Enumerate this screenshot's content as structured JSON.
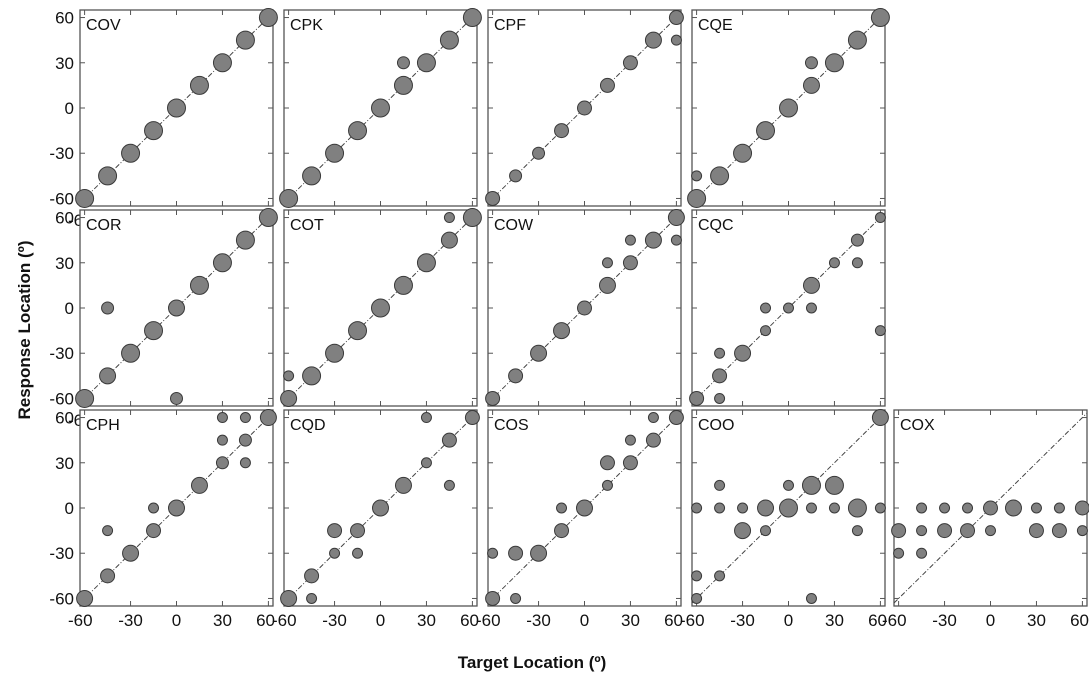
{
  "figure": {
    "xlabel": "Target Location (º)",
    "ylabel": "Response Location (º)"
  },
  "chart_data": [
    {
      "type": "scatter",
      "panel": "COV",
      "xlim": [
        -63,
        63
      ],
      "ylim": [
        -65,
        65
      ],
      "xticks": [
        "-60",
        "-30",
        "0",
        "30",
        "60"
      ],
      "yticks": [
        "60",
        "30",
        "0",
        "-30",
        "-60"
      ],
      "points": [
        [
          -60,
          -60,
          9
        ],
        [
          -45,
          -45,
          9
        ],
        [
          -30,
          -30,
          9
        ],
        [
          -15,
          -15,
          9
        ],
        [
          0,
          0,
          9
        ],
        [
          15,
          15,
          9
        ],
        [
          30,
          30,
          9
        ],
        [
          45,
          45,
          9
        ],
        [
          60,
          60,
          9
        ]
      ]
    },
    {
      "type": "scatter",
      "panel": "CPK",
      "xlim": [
        -63,
        63
      ],
      "ylim": [
        -65,
        65
      ],
      "points": [
        [
          -60,
          -60,
          9
        ],
        [
          -45,
          -45,
          9
        ],
        [
          -30,
          -30,
          9
        ],
        [
          -15,
          -15,
          9
        ],
        [
          0,
          0,
          9
        ],
        [
          15,
          15,
          9
        ],
        [
          15,
          30,
          6
        ],
        [
          30,
          30,
          9
        ],
        [
          45,
          45,
          9
        ],
        [
          60,
          60,
          9
        ]
      ]
    },
    {
      "type": "scatter",
      "panel": "CPF",
      "xlim": [
        -63,
        63
      ],
      "ylim": [
        -65,
        65
      ],
      "points": [
        [
          -60,
          -60,
          7
        ],
        [
          -45,
          -45,
          6
        ],
        [
          -30,
          -30,
          6
        ],
        [
          -15,
          -15,
          7
        ],
        [
          0,
          0,
          7
        ],
        [
          15,
          15,
          7
        ],
        [
          30,
          30,
          7
        ],
        [
          45,
          45,
          8
        ],
        [
          60,
          60,
          7
        ],
        [
          60,
          45,
          5
        ]
      ]
    },
    {
      "type": "scatter",
      "panel": "CQE",
      "xlim": [
        -63,
        63
      ],
      "ylim": [
        -65,
        65
      ],
      "points": [
        [
          -60,
          -60,
          9
        ],
        [
          -60,
          -45,
          5
        ],
        [
          -45,
          -45,
          9
        ],
        [
          -30,
          -30,
          9
        ],
        [
          -15,
          -15,
          9
        ],
        [
          0,
          0,
          9
        ],
        [
          15,
          15,
          8
        ],
        [
          15,
          30,
          6
        ],
        [
          30,
          30,
          9
        ],
        [
          45,
          45,
          9
        ],
        [
          60,
          60,
          9
        ]
      ]
    },
    {
      "type": "scatter",
      "panel": "COR",
      "xlim": [
        -63,
        63
      ],
      "ylim": [
        -65,
        65
      ],
      "xticks": [
        "-60",
        "-30",
        "0",
        "30",
        "60"
      ],
      "yticks": [
        "60",
        "30",
        "0",
        "-30",
        "-60"
      ],
      "points": [
        [
          -60,
          -60,
          9
        ],
        [
          -45,
          -45,
          8
        ],
        [
          -45,
          0,
          6
        ],
        [
          -30,
          -30,
          9
        ],
        [
          -15,
          -15,
          9
        ],
        [
          0,
          0,
          8
        ],
        [
          0,
          -60,
          6
        ],
        [
          15,
          15,
          9
        ],
        [
          30,
          30,
          9
        ],
        [
          45,
          45,
          9
        ],
        [
          60,
          60,
          9
        ]
      ]
    },
    {
      "type": "scatter",
      "panel": "COT",
      "xlim": [
        -63,
        63
      ],
      "ylim": [
        -65,
        65
      ],
      "points": [
        [
          -60,
          -60,
          8
        ],
        [
          -60,
          -45,
          5
        ],
        [
          -45,
          -45,
          9
        ],
        [
          -30,
          -30,
          9
        ],
        [
          -15,
          -15,
          9
        ],
        [
          0,
          0,
          9
        ],
        [
          15,
          15,
          9
        ],
        [
          30,
          30,
          9
        ],
        [
          45,
          45,
          8
        ],
        [
          45,
          60,
          5
        ],
        [
          60,
          60,
          9
        ]
      ]
    },
    {
      "type": "scatter",
      "panel": "COW",
      "xlim": [
        -63,
        63
      ],
      "ylim": [
        -65,
        65
      ],
      "points": [
        [
          -60,
          -60,
          7
        ],
        [
          -45,
          -45,
          7
        ],
        [
          -30,
          -30,
          8
        ],
        [
          -15,
          -15,
          8
        ],
        [
          0,
          0,
          7
        ],
        [
          15,
          15,
          8
        ],
        [
          15,
          30,
          5
        ],
        [
          30,
          30,
          7
        ],
        [
          30,
          45,
          5
        ],
        [
          45,
          45,
          8
        ],
        [
          60,
          60,
          8
        ],
        [
          60,
          45,
          5
        ]
      ]
    },
    {
      "type": "scatter",
      "panel": "CQC",
      "xlim": [
        -63,
        63
      ],
      "ylim": [
        -65,
        65
      ],
      "points": [
        [
          -60,
          -60,
          7
        ],
        [
          -45,
          -45,
          7
        ],
        [
          -45,
          -30,
          5
        ],
        [
          -45,
          -60,
          5
        ],
        [
          -30,
          -30,
          8
        ],
        [
          -15,
          -15,
          5
        ],
        [
          -15,
          0,
          5
        ],
        [
          0,
          0,
          5
        ],
        [
          15,
          15,
          8
        ],
        [
          15,
          0,
          5
        ],
        [
          30,
          30,
          5
        ],
        [
          45,
          45,
          6
        ],
        [
          45,
          30,
          5
        ],
        [
          60,
          60,
          5
        ],
        [
          60,
          -15,
          5
        ]
      ]
    },
    {
      "type": "scatter",
      "panel": "CPH",
      "xlim": [
        -63,
        63
      ],
      "ylim": [
        -65,
        65
      ],
      "xticks": [
        "-60",
        "-30",
        "0",
        "30",
        "60"
      ],
      "yticks": [
        "60",
        "30",
        "0",
        "-30",
        "-60"
      ],
      "points": [
        [
          -60,
          -60,
          8
        ],
        [
          -45,
          -45,
          7
        ],
        [
          -45,
          -15,
          5
        ],
        [
          -30,
          -30,
          8
        ],
        [
          -15,
          -15,
          7
        ],
        [
          -15,
          0,
          5
        ],
        [
          0,
          0,
          8
        ],
        [
          15,
          15,
          8
        ],
        [
          30,
          30,
          6
        ],
        [
          30,
          45,
          5
        ],
        [
          30,
          60,
          5
        ],
        [
          45,
          45,
          6
        ],
        [
          45,
          60,
          5
        ],
        [
          45,
          30,
          5
        ],
        [
          60,
          60,
          8
        ]
      ]
    },
    {
      "type": "scatter",
      "panel": "CQD",
      "xlim": [
        -63,
        63
      ],
      "ylim": [
        -65,
        65
      ],
      "xticks": [
        "-60",
        "-30",
        "0",
        "30",
        "60"
      ],
      "points": [
        [
          -60,
          -60,
          8
        ],
        [
          -45,
          -45,
          7
        ],
        [
          -45,
          -60,
          5
        ],
        [
          -30,
          -30,
          5
        ],
        [
          -30,
          -15,
          7
        ],
        [
          -15,
          -15,
          7
        ],
        [
          -15,
          -30,
          5
        ],
        [
          0,
          0,
          8
        ],
        [
          15,
          15,
          8
        ],
        [
          30,
          30,
          5
        ],
        [
          30,
          60,
          5
        ],
        [
          45,
          45,
          7
        ],
        [
          45,
          15,
          5
        ],
        [
          60,
          60,
          7
        ]
      ]
    },
    {
      "type": "scatter",
      "panel": "COS",
      "xlim": [
        -63,
        63
      ],
      "ylim": [
        -65,
        65
      ],
      "xticks": [
        "-60",
        "-30",
        "0",
        "30",
        "60"
      ],
      "points": [
        [
          -60,
          -60,
          7
        ],
        [
          -60,
          -30,
          5
        ],
        [
          -45,
          -30,
          7
        ],
        [
          -45,
          -60,
          5
        ],
        [
          -30,
          -30,
          8
        ],
        [
          -15,
          -15,
          7
        ],
        [
          -15,
          0,
          5
        ],
        [
          0,
          0,
          8
        ],
        [
          15,
          15,
          5
        ],
        [
          15,
          30,
          7
        ],
        [
          30,
          30,
          7
        ],
        [
          30,
          45,
          5
        ],
        [
          45,
          45,
          7
        ],
        [
          45,
          60,
          5
        ],
        [
          60,
          60,
          7
        ]
      ]
    },
    {
      "type": "scatter",
      "panel": "COO",
      "xlim": [
        -63,
        63
      ],
      "ylim": [
        -65,
        65
      ],
      "xticks": [
        "-60",
        "-30",
        "0",
        "30",
        "60"
      ],
      "points": [
        [
          -60,
          -60,
          5
        ],
        [
          -60,
          -45,
          5
        ],
        [
          -60,
          0,
          5
        ],
        [
          -45,
          -45,
          5
        ],
        [
          -45,
          0,
          5
        ],
        [
          -45,
          15,
          5
        ],
        [
          -30,
          -15,
          8
        ],
        [
          -30,
          0,
          5
        ],
        [
          -15,
          -15,
          5
        ],
        [
          -15,
          0,
          8
        ],
        [
          0,
          0,
          9
        ],
        [
          0,
          15,
          5
        ],
        [
          15,
          15,
          9
        ],
        [
          15,
          0,
          5
        ],
        [
          15,
          -60,
          5
        ],
        [
          30,
          15,
          9
        ],
        [
          30,
          0,
          5
        ],
        [
          45,
          0,
          9
        ],
        [
          45,
          -15,
          5
        ],
        [
          60,
          0,
          5
        ],
        [
          60,
          60,
          8
        ]
      ]
    },
    {
      "type": "scatter",
      "panel": "COX",
      "xlim": [
        -63,
        63
      ],
      "ylim": [
        -65,
        65
      ],
      "xticks": [
        "-60",
        "-30",
        "0",
        "30",
        "60"
      ],
      "points": [
        [
          -60,
          -15,
          7
        ],
        [
          -60,
          -30,
          5
        ],
        [
          -45,
          -15,
          5
        ],
        [
          -45,
          0,
          5
        ],
        [
          -45,
          -30,
          5
        ],
        [
          -30,
          -15,
          7
        ],
        [
          -30,
          0,
          5
        ],
        [
          -15,
          -15,
          7
        ],
        [
          -15,
          0,
          5
        ],
        [
          0,
          0,
          7
        ],
        [
          0,
          -15,
          5
        ],
        [
          15,
          0,
          8
        ],
        [
          30,
          -15,
          7
        ],
        [
          30,
          0,
          5
        ],
        [
          45,
          -15,
          7
        ],
        [
          45,
          0,
          5
        ],
        [
          60,
          0,
          7
        ],
        [
          60,
          -15,
          5
        ]
      ]
    }
  ]
}
